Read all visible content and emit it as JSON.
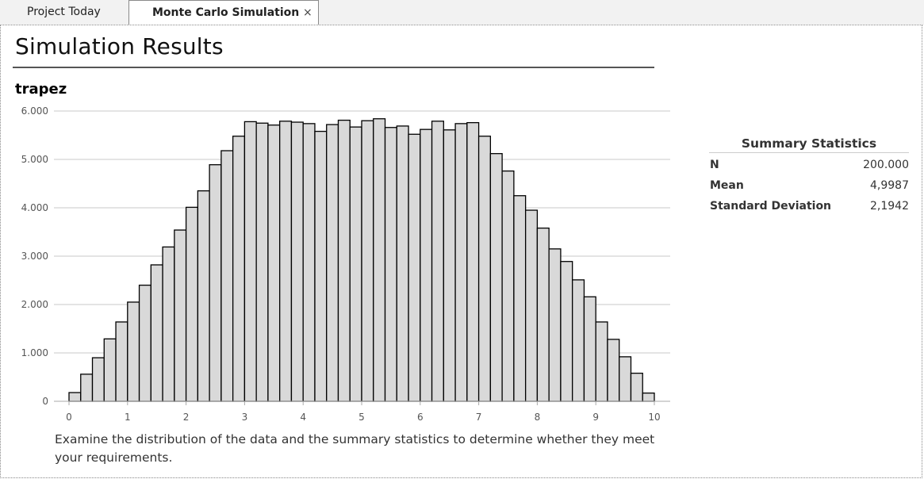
{
  "tabs": [
    {
      "label": "Project Today",
      "active": false
    },
    {
      "label": "Monte Carlo Simulation",
      "active": true,
      "close": "×"
    }
  ],
  "page": {
    "title": "Simulation Results",
    "note": "Examine the distribution of the data and the summary statistics to determine whether they meet your requirements."
  },
  "summary": {
    "title": "Summary Statistics",
    "rows": [
      {
        "label": "N",
        "value": "200.000"
      },
      {
        "label": "Mean",
        "value": "4,9987"
      },
      {
        "label": "Standard Deviation",
        "value": "2,1942"
      }
    ]
  },
  "colors": {
    "bar_fill": "#d9d9d9",
    "bar_stroke": "#000000",
    "grid": "#c8c8c8"
  },
  "chart_data": {
    "type": "bar",
    "title": "trapez",
    "xlabel": "",
    "ylabel": "",
    "xlim": [
      0,
      10
    ],
    "ylim": [
      0,
      6000
    ],
    "grid": true,
    "bin_width": 0.2,
    "y_ticks": [
      "0",
      "1.000",
      "2.000",
      "3.000",
      "4.000",
      "5.000",
      "6.000"
    ],
    "x_ticks": [
      "0",
      "1",
      "2",
      "3",
      "4",
      "5",
      "6",
      "7",
      "8",
      "9",
      "10"
    ],
    "values": [
      180,
      560,
      900,
      1290,
      1640,
      2050,
      2400,
      2820,
      3190,
      3540,
      4010,
      4350,
      4890,
      5180,
      5480,
      5780,
      5750,
      5710,
      5790,
      5770,
      5740,
      5580,
      5720,
      5810,
      5670,
      5800,
      5840,
      5660,
      5690,
      5520,
      5620,
      5790,
      5610,
      5740,
      5760,
      5480,
      5120,
      4760,
      4250,
      3950,
      3580,
      3150,
      2890,
      2510,
      2160,
      1640,
      1280,
      920,
      580,
      170
    ]
  }
}
